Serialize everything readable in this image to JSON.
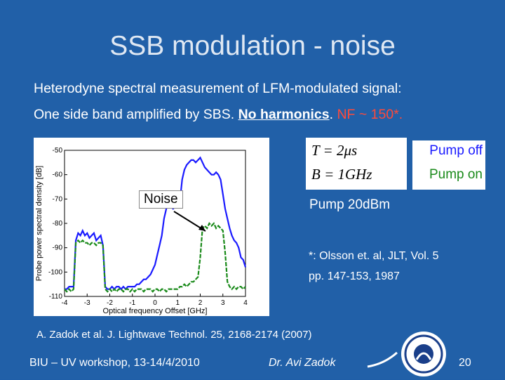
{
  "slide": {
    "title": "SSB modulation - noise",
    "line1": "Heterodyne spectral measurement of LFM-modulated signal:",
    "line2_a": "One side band amplified by SBS. ",
    "line2_b": "No harmonics",
    "line2_c": ". ",
    "line2_d": "NF ~ 150*.",
    "noise_label": "Noise",
    "eq_T": "T = 2μs",
    "eq_B": "B = 1GHz",
    "legend_off": "Pump off",
    "legend_on": "Pump on",
    "pump20": "Pump 20dBm",
    "olsson_1": "*: Olsson et. al, JLT, Vol. 5",
    "olsson_2": "pp. 147-153, 1987",
    "reference": "A. Zadok et al. J. Lightwave Technol. 25, 2168-2174 (2007)",
    "footer_left": "BIU – UV workshop, 13-14/4/2010",
    "footer_mid": "Dr. Avi Zadok",
    "page": "20"
  },
  "colors": {
    "background": "#2160a8",
    "pump_off": "#1a1aff",
    "pump_on": "#1a8a1a",
    "highlight": "#ff4a3a"
  },
  "chart_data": {
    "type": "line",
    "xlabel": "Optical frequency Offset [GHz]",
    "ylabel": "Probe power spectral density [dB]",
    "xlim": [
      -4,
      4
    ],
    "ylim": [
      -110,
      -50
    ],
    "xticks": [
      -4,
      -3,
      -2,
      -1,
      0,
      1,
      2,
      3,
      4
    ],
    "yticks": [
      -50,
      -60,
      -70,
      -80,
      -90,
      -100,
      -110
    ],
    "series": [
      {
        "name": "Pump off",
        "x": [
          -4.0,
          -3.9,
          -3.8,
          -3.7,
          -3.6,
          -3.5,
          -3.4,
          -3.3,
          -3.2,
          -3.1,
          -3.0,
          -2.9,
          -2.8,
          -2.7,
          -2.6,
          -2.5,
          -2.4,
          -2.3,
          -2.2,
          -2.1,
          -2.0,
          -1.9,
          -1.8,
          -1.7,
          -1.6,
          -1.5,
          -1.4,
          -1.3,
          -1.2,
          -1.1,
          -1.0,
          -0.9,
          -0.8,
          -0.7,
          -0.6,
          -0.5,
          -0.4,
          -0.3,
          -0.2,
          -0.1,
          0.0,
          0.1,
          0.2,
          0.3,
          0.4,
          0.5,
          0.6,
          0.7,
          0.8,
          0.9,
          1.0,
          1.1,
          1.2,
          1.3,
          1.4,
          1.5,
          1.6,
          1.7,
          1.8,
          1.9,
          2.0,
          2.1,
          2.2,
          2.3,
          2.4,
          2.5,
          2.6,
          2.7,
          2.8,
          2.9,
          3.0,
          3.1,
          3.2,
          3.3,
          3.4,
          3.5,
          3.6,
          3.7,
          3.8,
          3.9,
          4.0
        ],
        "y": [
          -107,
          -107,
          -106,
          -106,
          -106,
          -87,
          -84,
          -85,
          -83,
          -85,
          -84,
          -86,
          -85,
          -84,
          -87,
          -86,
          -85,
          -89,
          -106,
          -107,
          -107,
          -106,
          -107,
          -106,
          -106,
          -107,
          -106,
          -107,
          -106,
          -106,
          -106,
          -106,
          -105,
          -105,
          -104,
          -103,
          -103,
          -102,
          -101,
          -99,
          -97,
          -93,
          -89,
          -85,
          -78,
          -74,
          -72,
          -73,
          -74,
          -73,
          -72,
          -71,
          -62,
          -58,
          -56,
          -55,
          -54,
          -54,
          -55,
          -54,
          -53,
          -55,
          -57,
          -58,
          -59,
          -60,
          -60,
          -59,
          -60,
          -62,
          -68,
          -74,
          -78,
          -82,
          -85,
          -87,
          -88,
          -90,
          -94,
          -95,
          -98
        ]
      },
      {
        "name": "Pump on",
        "x": [
          -4.0,
          -3.9,
          -3.8,
          -3.7,
          -3.6,
          -3.5,
          -3.4,
          -3.3,
          -3.2,
          -3.1,
          -3.0,
          -2.9,
          -2.8,
          -2.7,
          -2.6,
          -2.5,
          -2.4,
          -2.3,
          -2.2,
          -2.1,
          -2.0,
          -1.9,
          -1.8,
          -1.7,
          -1.6,
          -1.5,
          -1.4,
          -1.3,
          -1.2,
          -1.1,
          -1.0,
          -0.9,
          -0.8,
          -0.7,
          -0.6,
          -0.5,
          -0.4,
          -0.3,
          -0.2,
          -0.1,
          0.0,
          0.1,
          0.2,
          0.3,
          0.4,
          0.5,
          0.6,
          0.7,
          0.8,
          0.9,
          1.0,
          1.1,
          1.2,
          1.3,
          1.4,
          1.5,
          1.6,
          1.7,
          1.8,
          1.9,
          2.0,
          2.1,
          2.2,
          2.3,
          2.4,
          2.5,
          2.6,
          2.7,
          2.8,
          2.9,
          3.0,
          3.1,
          3.2,
          3.3,
          3.4,
          3.5,
          3.6,
          3.7,
          3.8,
          3.9,
          4.0
        ],
        "y": [
          -107,
          -108,
          -107,
          -108,
          -107,
          -88,
          -87,
          -88,
          -87,
          -88,
          -88,
          -89,
          -88,
          -88,
          -89,
          -88,
          -88,
          -89,
          -107,
          -108,
          -107,
          -108,
          -107,
          -108,
          -107,
          -107,
          -108,
          -107,
          -107,
          -108,
          -107,
          -108,
          -107,
          -107,
          -107,
          -108,
          -107,
          -107,
          -107,
          -108,
          -107,
          -107,
          -108,
          -107,
          -107,
          -108,
          -107,
          -107,
          -107,
          -107,
          -107,
          -106,
          -106,
          -105,
          -106,
          -105,
          -104,
          -104,
          -103,
          -102,
          -94,
          -82,
          -81,
          -82,
          -80,
          -81,
          -80,
          -82,
          -81,
          -82,
          -83,
          -92,
          -104,
          -106,
          -107,
          -106,
          -107,
          -106,
          -106,
          -107,
          -106
        ]
      }
    ]
  }
}
